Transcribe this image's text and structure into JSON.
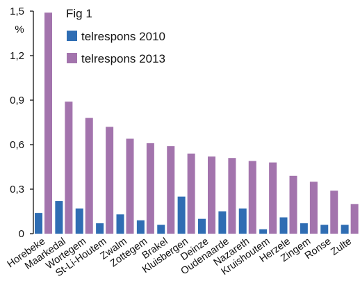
{
  "chart_data": {
    "type": "bar",
    "title": "Fig 1",
    "ylabel": "%",
    "xlabel": "",
    "ylim": [
      0,
      1.5
    ],
    "yticks": [
      "0",
      "0,3",
      "0,6",
      "0,9",
      "1,2",
      "1,5"
    ],
    "ytick_values": [
      0,
      0.3,
      0.6,
      0.9,
      1.2,
      1.5
    ],
    "categories": [
      "Horebeke",
      "Maarkedal",
      "Wortegem",
      "St-Li-Houtem",
      "Zwalm",
      "Zottegem",
      "Brakel",
      "Kluisbergen",
      "Deinze",
      "Oudenaarde",
      "Nazareth",
      "Kruishoutem",
      "Herzele",
      "Zingem",
      "Ronse",
      "Zulte"
    ],
    "series": [
      {
        "name": "telrespons 2010",
        "color": "#2f6db3",
        "values": [
          0.14,
          0.22,
          0.17,
          0.07,
          0.13,
          0.09,
          0.06,
          0.25,
          0.1,
          0.15,
          0.17,
          0.03,
          0.11,
          0.07,
          0.06,
          0.06
        ]
      },
      {
        "name": "telrespons 2013",
        "color": "#a374ad",
        "values": [
          1.49,
          0.89,
          0.78,
          0.72,
          0.64,
          0.61,
          0.59,
          0.54,
          0.52,
          0.51,
          0.49,
          0.48,
          0.39,
          0.35,
          0.29,
          0.2
        ]
      }
    ],
    "legend_position": "top-left",
    "grid": false
  }
}
